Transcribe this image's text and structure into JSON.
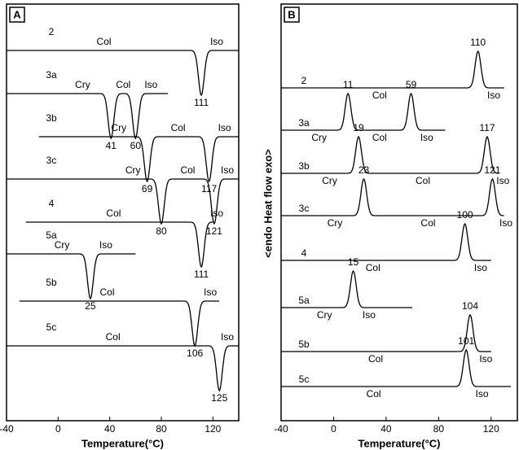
{
  "chart_data": [
    {
      "type": "dsc",
      "panel": "A",
      "xlabel": "Temperature(°C)",
      "xlim": [
        -40,
        140
      ],
      "xticks": [
        -40,
        0,
        40,
        80,
        120
      ],
      "direction": "down",
      "color": "#000000",
      "traces": [
        {
          "name": "2",
          "range": [
            -40,
            140
          ],
          "peaks": [
            111
          ],
          "phases": [
            "Col",
            "Iso"
          ]
        },
        {
          "name": "3a",
          "range": [
            -40,
            85
          ],
          "peaks": [
            41,
            60
          ],
          "phases": [
            "Cry",
            "Col",
            "Iso"
          ]
        },
        {
          "name": "3b",
          "range": [
            -15,
            140
          ],
          "peaks": [
            69,
            117
          ],
          "phases": [
            "Cry",
            "Col",
            "Iso"
          ]
        },
        {
          "name": "3c",
          "range": [
            -40,
            140
          ],
          "peaks": [
            80,
            121
          ],
          "phases": [
            "Cry",
            "Col",
            "Iso"
          ]
        },
        {
          "name": "4",
          "range": [
            -25,
            120
          ],
          "peaks": [
            111
          ],
          "phases": [
            "Col",
            "Iso"
          ]
        },
        {
          "name": "5a",
          "range": [
            -40,
            60
          ],
          "peaks": [
            25
          ],
          "phases": [
            "Cry",
            "Iso"
          ]
        },
        {
          "name": "5b",
          "range": [
            -30,
            125
          ],
          "peaks": [
            106
          ],
          "phases": [
            "Col",
            "Iso"
          ]
        },
        {
          "name": "5c",
          "range": [
            -40,
            140
          ],
          "peaks": [
            125
          ],
          "phases": [
            "Col",
            "Iso"
          ]
        }
      ]
    },
    {
      "type": "dsc",
      "panel": "B",
      "xlabel": "Temperature(°C)",
      "ylabel": "<endo Heat flow exo>",
      "xlim": [
        -40,
        140
      ],
      "xticks": [
        -40,
        0,
        40,
        80,
        120
      ],
      "direction": "up",
      "color": "#000000",
      "traces": [
        {
          "name": "2",
          "range": [
            -40,
            130
          ],
          "peaks": [
            110
          ],
          "phases": [
            "Col",
            "Iso"
          ]
        },
        {
          "name": "3a",
          "range": [
            -40,
            85
          ],
          "peaks": [
            11,
            59
          ],
          "phases": [
            "Cry",
            "Col",
            "Iso"
          ]
        },
        {
          "name": "3b",
          "range": [
            -40,
            125
          ],
          "peaks": [
            19,
            117
          ],
          "phases": [
            "Cry",
            "Col",
            "Iso"
          ]
        },
        {
          "name": "3c",
          "range": [
            -40,
            125
          ],
          "peaks": [
            23,
            121
          ],
          "phases": [
            "Cry",
            "Col",
            "Iso"
          ]
        },
        {
          "name": "4",
          "range": [
            -40,
            120
          ],
          "peaks": [
            100
          ],
          "phases": [
            "Col",
            "Iso"
          ]
        },
        {
          "name": "5a",
          "range": [
            -40,
            60
          ],
          "peaks": [
            15
          ],
          "phases": [
            "Cry",
            "Iso"
          ]
        },
        {
          "name": "5b",
          "range": [
            -40,
            120
          ],
          "peaks": [
            104
          ],
          "phases": [
            "Col",
            "Iso"
          ]
        },
        {
          "name": "5c",
          "range": [
            -40,
            135
          ],
          "peaks": [
            101
          ],
          "phases": [
            "Col",
            "Iso"
          ]
        }
      ]
    }
  ]
}
